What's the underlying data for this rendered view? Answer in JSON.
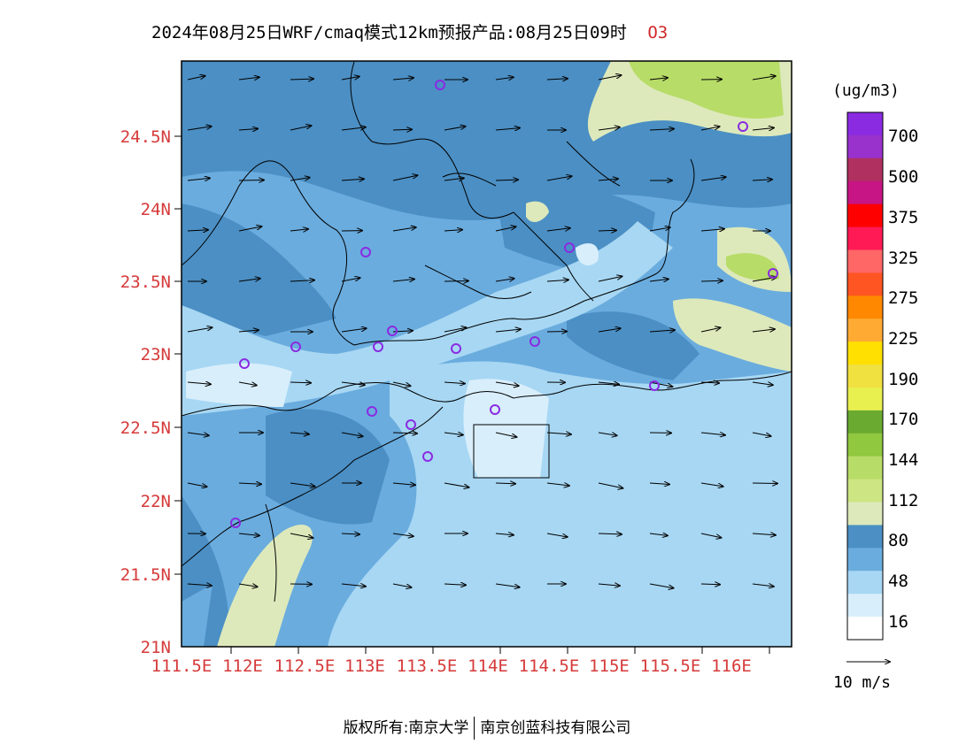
{
  "title": {
    "main": "2024年08月25日WRF/cmaq模式12km预报产品:08月25日09时",
    "species": "O3"
  },
  "axes": {
    "lat_labels": [
      "24.5N",
      "24N",
      "23.5N",
      "23N",
      "22.5N",
      "22N",
      "21.5N",
      "21N"
    ],
    "lon_labels": [
      "111.5E",
      "112E",
      "112.5E",
      "113E",
      "113.5E",
      "114E",
      "114.5E",
      "115E",
      "115.5E",
      "116E"
    ]
  },
  "legend": {
    "unit": "(ug/m3)",
    "labels": [
      "700",
      "500",
      "375",
      "325",
      "275",
      "225",
      "190",
      "170",
      "144",
      "112",
      "80",
      "48",
      "16"
    ],
    "colors": [
      "#8a2be2",
      "#9932cc",
      "#b03060",
      "#c71585",
      "#ff0000",
      "#ff1a55",
      "#ff6666",
      "#ff5522",
      "#ff8800",
      "#ffaa33",
      "#ffe000",
      "#f0e040",
      "#e8f050",
      "#6aaa30",
      "#90c840",
      "#b8dc68",
      "#cde582",
      "#dde9bb",
      "#4b8fc4",
      "#6aacde",
      "#a7d7f3",
      "#d8eefb",
      "#ffffff"
    ]
  },
  "wind_reference": {
    "label": "10 m/s"
  },
  "footer": {
    "left": "版权所有:南京大学",
    "right": "南京创蓝科技有限公司"
  }
}
